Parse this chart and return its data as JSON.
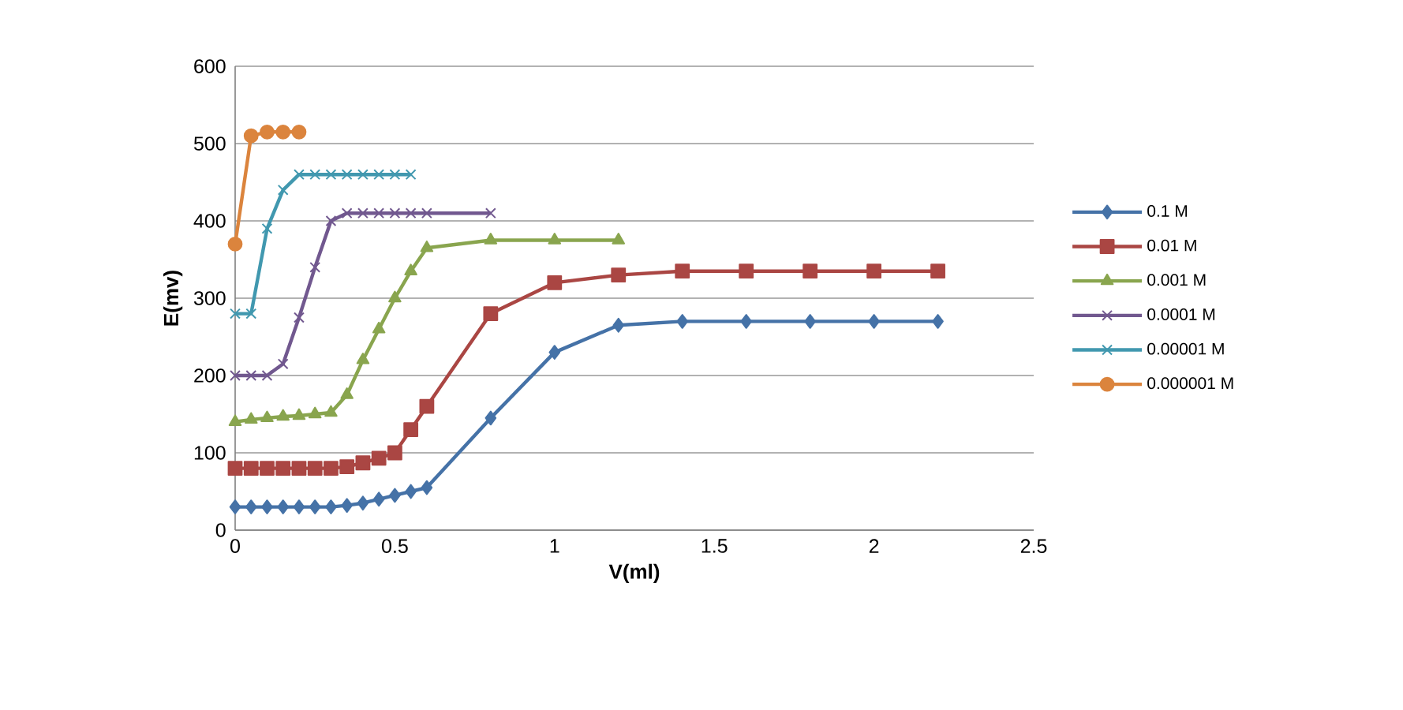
{
  "chart_data": {
    "type": "line",
    "xlabel": "V(ml)",
    "ylabel": "E(mv)",
    "xlim": [
      0,
      2.5
    ],
    "ylim": [
      0,
      600
    ],
    "xticks": [
      0,
      0.5,
      1,
      1.5,
      2,
      2.5
    ],
    "yticks": [
      0,
      100,
      200,
      300,
      400,
      500,
      600
    ],
    "grid": "y",
    "legend": "right",
    "line_style": "solid",
    "series": [
      {
        "name": "0.1 M",
        "color": "#4572a7",
        "marker": "diamond",
        "x": [
          0,
          0.05,
          0.1,
          0.15,
          0.2,
          0.25,
          0.3,
          0.35,
          0.4,
          0.45,
          0.5,
          0.55,
          0.6,
          0.8,
          1.0,
          1.2,
          1.4,
          1.6,
          1.8,
          2.0,
          2.2
        ],
        "values": [
          30,
          30,
          30,
          30,
          30,
          30,
          30,
          32,
          35,
          40,
          45,
          50,
          55,
          145,
          230,
          265,
          270,
          270,
          270,
          270,
          270
        ]
      },
      {
        "name": "0.01 M",
        "color": "#aa4643",
        "marker": "square",
        "x": [
          0,
          0.05,
          0.1,
          0.15,
          0.2,
          0.25,
          0.3,
          0.35,
          0.4,
          0.45,
          0.5,
          0.55,
          0.6,
          0.8,
          1.0,
          1.2,
          1.4,
          1.6,
          1.8,
          2.0,
          2.2
        ],
        "values": [
          80,
          80,
          80,
          80,
          80,
          80,
          80,
          82,
          87,
          93,
          100,
          130,
          160,
          280,
          320,
          330,
          335,
          335,
          335,
          335,
          335
        ]
      },
      {
        "name": "0.001 M",
        "color": "#89a54e",
        "marker": "triangle",
        "x": [
          0,
          0.05,
          0.1,
          0.15,
          0.2,
          0.25,
          0.3,
          0.35,
          0.4,
          0.45,
          0.5,
          0.55,
          0.6,
          0.8,
          1.0,
          1.2
        ],
        "values": [
          140,
          143,
          145,
          147,
          148,
          150,
          152,
          175,
          220,
          260,
          300,
          335,
          365,
          375,
          375,
          375
        ]
      },
      {
        "name": "0.0001 M",
        "color": "#71588f",
        "marker": "cross",
        "x": [
          0,
          0.05,
          0.1,
          0.15,
          0.2,
          0.25,
          0.3,
          0.35,
          0.4,
          0.45,
          0.5,
          0.55,
          0.6,
          0.8
        ],
        "values": [
          200,
          200,
          200,
          215,
          275,
          340,
          400,
          410,
          410,
          410,
          410,
          410,
          410,
          410
        ]
      },
      {
        "name": "0.00001 M",
        "color": "#4198af",
        "marker": "cross",
        "x": [
          0,
          0.05,
          0.1,
          0.15,
          0.2,
          0.25,
          0.3,
          0.35,
          0.4,
          0.45,
          0.5,
          0.55
        ],
        "values": [
          280,
          280,
          390,
          440,
          460,
          460,
          460,
          460,
          460,
          460,
          460,
          460
        ]
      },
      {
        "name": "0.000001 M",
        "color": "#db843d",
        "marker": "circle",
        "x": [
          0,
          0.05,
          0.1,
          0.15,
          0.2
        ],
        "values": [
          370,
          510,
          515,
          515,
          515
        ]
      }
    ]
  }
}
